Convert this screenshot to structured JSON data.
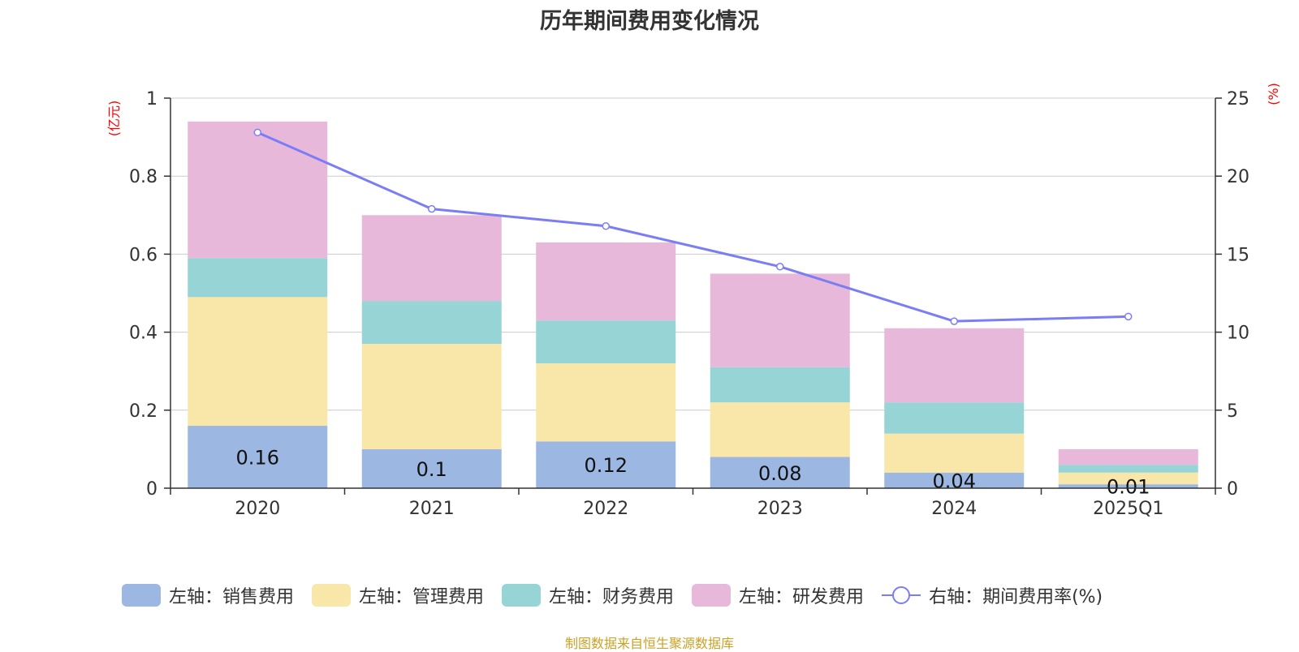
{
  "title": "历年期间费用变化情况",
  "source": "制图数据来自恒生聚源数据库",
  "chart_data": {
    "type": "bar",
    "stacked": true,
    "categories": [
      "2020",
      "2021",
      "2022",
      "2023",
      "2024",
      "2025Q1"
    ],
    "left_axis": {
      "unit_label": "(亿元)",
      "ylim": [
        0,
        1
      ],
      "ticks": [
        "0",
        "0.2",
        "0.4",
        "0.6",
        "0.8",
        "1"
      ],
      "color": "#ff0000"
    },
    "right_axis": {
      "unit_label": "(%)",
      "ylim": [
        0,
        25
      ],
      "ticks": [
        "0",
        "5",
        "10",
        "15",
        "20",
        "25"
      ],
      "color": "#ff0000"
    },
    "series": [
      {
        "name": "左轴：销售费用",
        "type": "bar",
        "color": "#9bb7e2",
        "values": [
          0.16,
          0.1,
          0.12,
          0.08,
          0.04,
          0.01
        ],
        "labels": [
          "0.16",
          "0.1",
          "0.12",
          "0.08",
          "0.04",
          "0.01"
        ]
      },
      {
        "name": "左轴：管理费用",
        "type": "bar",
        "color": "#f8e7a8",
        "values": [
          0.33,
          0.27,
          0.2,
          0.14,
          0.1,
          0.03
        ]
      },
      {
        "name": "左轴：财务费用",
        "type": "bar",
        "color": "#97d4d5",
        "values": [
          0.1,
          0.11,
          0.11,
          0.09,
          0.08,
          0.02
        ]
      },
      {
        "name": "左轴：研发费用",
        "type": "bar",
        "color": "#e7b8d9",
        "values": [
          0.35,
          0.22,
          0.2,
          0.24,
          0.19,
          0.04
        ]
      },
      {
        "name": "右轴：期间费用率(%)",
        "type": "line",
        "axis": "right",
        "color": "#7b7df5",
        "values": [
          22.8,
          17.9,
          16.8,
          14.2,
          10.7,
          11.0
        ]
      }
    ],
    "grid": true,
    "legend_position": "bottom"
  }
}
